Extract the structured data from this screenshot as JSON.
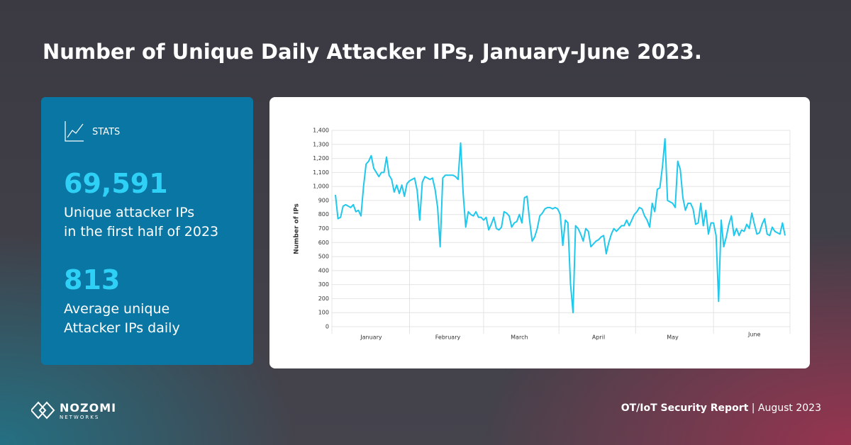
{
  "header": {
    "title": "Number of Unique Daily Attacker IPs, January-June 2023."
  },
  "stats": {
    "label": "STATS",
    "items": [
      {
        "value": "69,591",
        "lines": [
          "Unique attacker IPs",
          "in the first half of 2023"
        ]
      },
      {
        "value": "813",
        "lines": [
          "Average unique",
          "Attacker IPs daily"
        ]
      }
    ]
  },
  "footer": {
    "logo_name": "NOZOMI",
    "logo_sub": "NETWORKS",
    "report": "OT/IoT Security Report",
    "date": "August 2023"
  },
  "chart_data": {
    "type": "line",
    "y_label": "Number of IPs",
    "grid": true,
    "categories": [
      null,
      null,
      null,
      null,
      null,
      null,
      null,
      null,
      null,
      null,
      null,
      null,
      null,
      null,
      "January",
      null,
      null,
      null,
      null,
      null,
      null,
      null,
      null,
      null,
      null,
      null,
      null,
      null,
      null,
      null,
      null,
      null,
      null,
      null,
      null,
      null,
      null,
      null,
      null,
      null,
      null,
      null,
      null,
      null,
      "February",
      null,
      null,
      null,
      null,
      null,
      null,
      null,
      null,
      null,
      null,
      null,
      null,
      null,
      null,
      null,
      null,
      null,
      null,
      null,
      null,
      null,
      null,
      null,
      null,
      null,
      null,
      null,
      "March",
      null,
      null,
      null,
      null,
      null,
      null,
      null,
      null,
      null,
      null,
      null,
      null,
      null,
      null,
      null,
      null,
      null,
      null,
      null,
      null,
      null,
      null,
      null,
      null,
      null,
      null,
      null,
      null,
      null,
      null,
      "April",
      null,
      null,
      null,
      null,
      null,
      null,
      null,
      null,
      null,
      null,
      null,
      null,
      null,
      null,
      null,
      null,
      null,
      null,
      null,
      null,
      null,
      null,
      null,
      null,
      null,
      null,
      null,
      null,
      "May",
      null,
      null,
      null,
      null,
      null,
      null,
      null,
      null,
      null,
      null,
      null,
      null,
      null,
      null,
      null,
      null,
      null,
      null,
      null,
      null,
      null,
      null,
      null,
      null,
      null,
      null,
      null,
      null,
      null,
      null,
      null,
      "June",
      null,
      null,
      null,
      null,
      null,
      null,
      null,
      null,
      null,
      null,
      null,
      null
    ],
    "series": [
      {
        "name": "Unique attacker IPs",
        "color": "#1fc8ec",
        "values": [
          940,
          770,
          780,
          860,
          870,
          860,
          850,
          870,
          820,
          830,
          790,
          1000,
          1160,
          1180,
          1220,
          1130,
          1100,
          1070,
          1100,
          1100,
          1210,
          1080,
          1050,
          960,
          1010,
          950,
          1010,
          930,
          1020,
          1040,
          1050,
          1060,
          970,
          760,
          1030,
          1070,
          1060,
          1050,
          1060,
          980,
          850,
          570,
          1060,
          1080,
          1080,
          1080,
          1080,
          1070,
          1050,
          1310,
          950,
          710,
          820,
          800,
          790,
          820,
          780,
          780,
          760,
          780,
          690,
          730,
          780,
          700,
          690,
          710,
          820,
          810,
          790,
          710,
          740,
          750,
          800,
          740,
          920,
          930,
          760,
          610,
          640,
          700,
          790,
          810,
          840,
          850,
          850,
          840,
          850,
          840,
          800,
          580,
          760,
          740,
          310,
          100,
          720,
          700,
          660,
          610,
          700,
          680,
          570,
          590,
          610,
          620,
          640,
          650,
          520,
          600,
          660,
          700,
          680,
          700,
          720,
          720,
          760,
          720,
          760,
          800,
          820,
          850,
          840,
          790,
          760,
          710,
          880,
          820,
          980,
          990,
          1140,
          1340,
          900,
          890,
          880,
          850,
          1180,
          1120,
          920,
          830,
          880,
          880,
          840,
          730,
          740,
          880,
          720,
          830,
          660,
          740,
          740,
          650,
          180,
          760,
          570,
          640,
          730,
          790,
          650,
          700,
          650,
          690,
          680,
          730,
          700,
          810,
          730,
          660,
          670,
          730,
          770,
          660,
          650,
          710,
          680,
          670,
          660,
          740,
          650
        ]
      }
    ],
    "ylim": [
      0,
      1400
    ],
    "yticks": [
      0,
      100,
      200,
      300,
      400,
      500,
      600,
      700,
      800,
      900,
      {
        "value": 1000,
        "label": "1,000"
      },
      {
        "value": 1100,
        "label": "1,100"
      },
      {
        "value": 1200,
        "label": "1,200"
      },
      {
        "value": 1300,
        "label": "1,300"
      },
      {
        "value": 1400,
        "label": "1,400"
      }
    ]
  }
}
